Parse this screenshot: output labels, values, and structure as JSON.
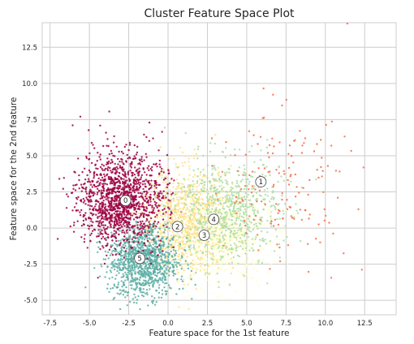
{
  "chart_data": {
    "type": "scatter",
    "title": "Cluster Feature Space Plot",
    "xlabel": "Feature space for the 1st feature",
    "ylabel": "Feature space for the 2nd feature",
    "xlim": [
      -8.0,
      14.5
    ],
    "ylim": [
      -6.0,
      14.2
    ],
    "x_ticks": [
      -7.5,
      -5.0,
      -2.5,
      0.0,
      2.5,
      5.0,
      7.5,
      10.0,
      12.5
    ],
    "x_tick_labels": [
      "-7.5",
      "-5.0",
      "-2.5",
      "0.0",
      "2.5",
      "5.0",
      "7.5",
      "10.0",
      "12.5"
    ],
    "y_ticks": [
      -5.0,
      -2.5,
      0.0,
      2.5,
      5.0,
      7.5,
      10.0,
      12.5
    ],
    "y_tick_labels": [
      "-5.0",
      "-2.5",
      "0.0",
      "2.5",
      "5.0",
      "7.5",
      "10.0",
      "12.5"
    ],
    "grid": true,
    "background": "#ffffff",
    "grid_color": "#cccccc",
    "clusters": [
      {
        "id": 0,
        "label": "0",
        "color": "#9e0142",
        "centroid": [
          -2.7,
          1.9
        ],
        "cx": -3.0,
        "cy": 2.0,
        "sx": 1.3,
        "sy": 1.6,
        "n": 1400
      },
      {
        "id": 1,
        "label": "1",
        "color": "#f46d43",
        "centroid": [
          5.9,
          3.2
        ],
        "cx": 7.0,
        "cy": 3.0,
        "sx": 2.3,
        "sy": 2.6,
        "n": 160
      },
      {
        "id": 2,
        "label": "2",
        "color": "#fee08b",
        "centroid": [
          0.6,
          0.1
        ],
        "cx": 1.2,
        "cy": 0.5,
        "sx": 1.5,
        "sy": 1.8,
        "n": 900
      },
      {
        "id": 3,
        "label": "3",
        "color": "#ffffbf",
        "centroid": [
          2.3,
          -0.5
        ],
        "cx": 3.0,
        "cy": -0.6,
        "sx": 1.7,
        "sy": 1.6,
        "n": 700
      },
      {
        "id": 4,
        "label": "4",
        "color": "#abdda4",
        "centroid": [
          2.9,
          0.6
        ],
        "cx": 3.8,
        "cy": 1.2,
        "sx": 1.7,
        "sy": 1.8,
        "n": 700
      },
      {
        "id": 5,
        "label": "5",
        "color": "#5aaea4",
        "centroid": [
          -1.8,
          -2.1
        ],
        "cx": -1.6,
        "cy": -2.3,
        "sx": 1.1,
        "sy": 1.2,
        "n": 1100
      }
    ]
  }
}
